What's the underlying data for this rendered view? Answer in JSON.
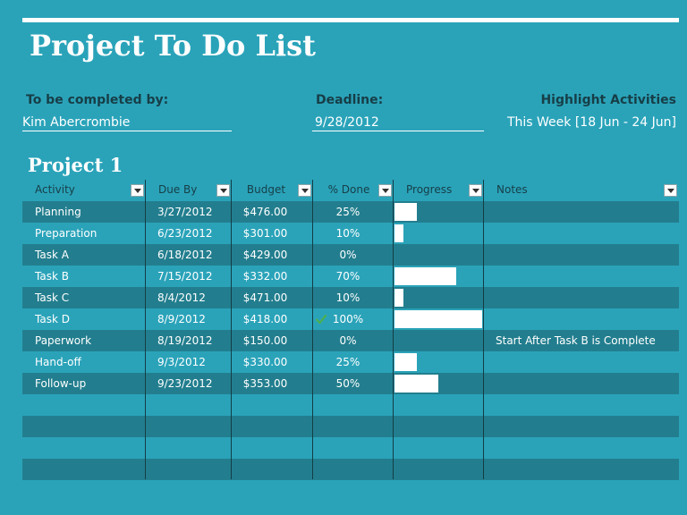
{
  "title": "Project To Do List",
  "header": {
    "completed_by_label": "To be completed by:",
    "completed_by_value": "Kim Abercrombie",
    "deadline_label": "Deadline:",
    "deadline_value": "9/28/2012",
    "highlight_label": "Highlight Activities",
    "highlight_value": "This Week [18 Jun - 24 Jun]"
  },
  "project": {
    "name": "Project 1",
    "columns": [
      "Activity",
      "Due By",
      "Budget",
      "% Done",
      "Progress",
      "Notes"
    ],
    "rows": [
      {
        "activity": "Planning",
        "due": "3/27/2012",
        "budget": "$476.00",
        "done": "25%",
        "progress": 0.25,
        "notes": "",
        "check": false
      },
      {
        "activity": "Preparation",
        "due": "6/23/2012",
        "budget": "$301.00",
        "done": "10%",
        "progress": 0.1,
        "notes": "",
        "check": false
      },
      {
        "activity": "Task A",
        "due": "6/18/2012",
        "budget": "$429.00",
        "done": "0%",
        "progress": 0,
        "notes": "",
        "check": false
      },
      {
        "activity": "Task B",
        "due": "7/15/2012",
        "budget": "$332.00",
        "done": "70%",
        "progress": 0.7,
        "notes": "",
        "check": false
      },
      {
        "activity": "Task C",
        "due": "8/4/2012",
        "budget": "$471.00",
        "done": "10%",
        "progress": 0.1,
        "notes": "",
        "check": false
      },
      {
        "activity": "Task D",
        "due": "8/9/2012",
        "budget": "$418.00",
        "done": "100%",
        "progress": 1.0,
        "notes": "",
        "check": true
      },
      {
        "activity": "Paperwork",
        "due": "8/19/2012",
        "budget": "$150.00",
        "done": "0%",
        "progress": 0,
        "notes": "Start After Task B is Complete",
        "check": false
      },
      {
        "activity": "Hand-off",
        "due": "9/3/2012",
        "budget": "$330.00",
        "done": "25%",
        "progress": 0.25,
        "notes": "",
        "check": false
      },
      {
        "activity": "Follow-up",
        "due": "9/23/2012",
        "budget": "$353.00",
        "done": "50%",
        "progress": 0.5,
        "notes": "",
        "check": false
      }
    ],
    "empty_rows": 4
  },
  "colors": {
    "background": "#2aa3b9",
    "row_dark": "#227e8e",
    "header_text": "#173e47",
    "check_green": "#4caf50"
  }
}
